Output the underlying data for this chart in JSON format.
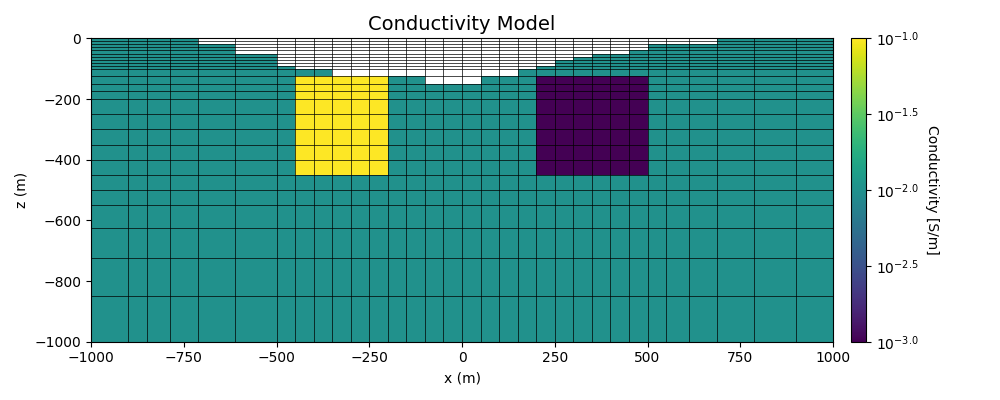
{
  "title": "Conductivity Model",
  "xlabel": "x (m)",
  "ylabel": "z (m)",
  "xlim": [
    -1000,
    1000
  ],
  "ylim": [
    -1000,
    0
  ],
  "cmap": "viridis",
  "vmin": -3.0,
  "vmax": -1.0,
  "sigma_bg": 0.01,
  "sigma_high": 0.1,
  "sigma_low": 0.001,
  "colorbar_label": "Conductivity [S/m]",
  "figsize": [
    10,
    4
  ],
  "dpi": 100,
  "anom1_xmin": -450,
  "anom1_xmax": -200,
  "anom1_zmin": -450,
  "anom1_zmax": -125,
  "anom2_xmin": 200,
  "anom2_xmax": 500,
  "anom2_zmin": -450,
  "anom2_zmax": -125,
  "grid_lw": 0.5,
  "grid_color": "black"
}
